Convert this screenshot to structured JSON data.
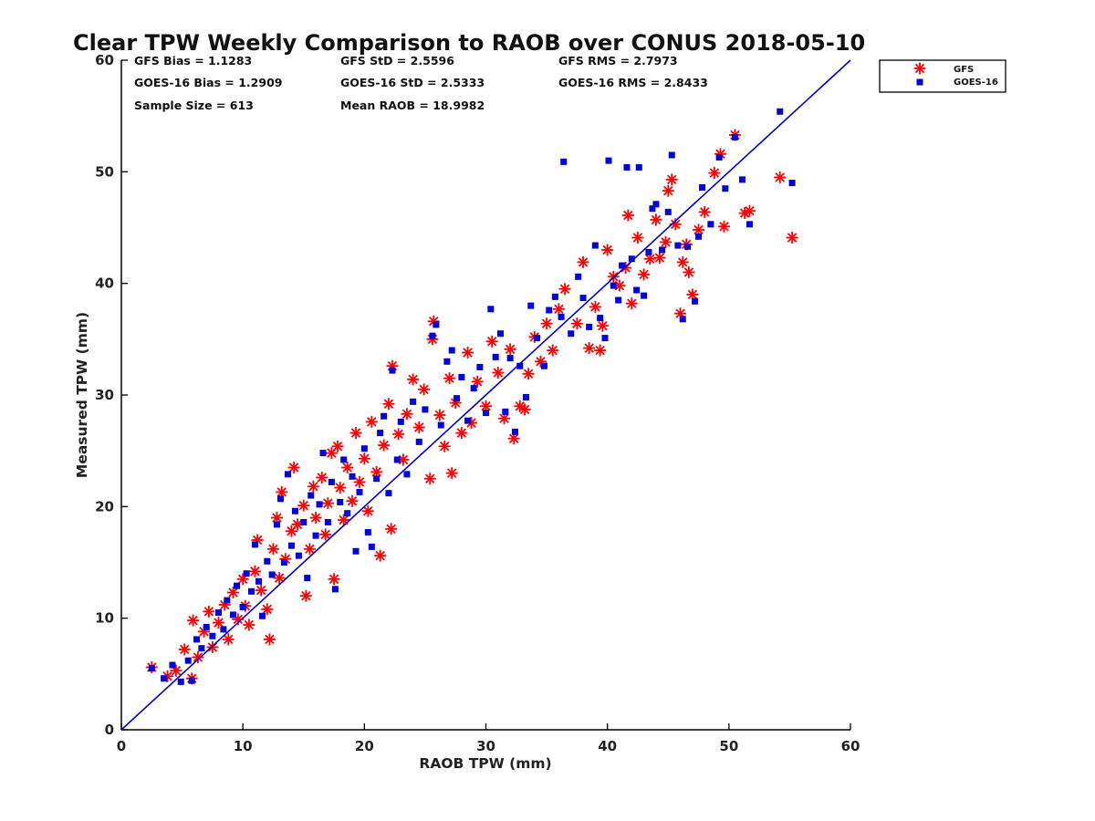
{
  "chart_data": {
    "type": "scatter",
    "title": "Clear TPW Weekly Comparison to RAOB over CONUS 2018-05-10",
    "xlabel": "RAOB TPW (mm)",
    "ylabel": "Measured TPW (mm)",
    "xlim": [
      0,
      60
    ],
    "ylim": [
      0,
      60
    ],
    "xticks": [
      "0",
      "10",
      "20",
      "30",
      "40",
      "50",
      "60"
    ],
    "yticks": [
      "0",
      "10",
      "20",
      "30",
      "40",
      "50",
      "60"
    ],
    "grid": false,
    "legend_position": "top-right, outside plot",
    "reference_line": {
      "name": "1:1 line",
      "from": [
        0,
        0
      ],
      "to": [
        60,
        60
      ],
      "color": "#0000cc"
    },
    "stats": {
      "gfs_bias": "GFS Bias = 1.1283",
      "goes_bias": "GOES-16 Bias = 1.2909",
      "sample_size": "Sample Size = 613",
      "gfs_std": "GFS StD = 2.5596",
      "goes_std": "GOES-16 StD = 2.5333",
      "mean_raob": "Mean RAOB = 18.9982",
      "gfs_rms": "GFS RMS = 2.7973",
      "goes_rms": "GOES-16 RMS = 2.8433"
    },
    "series": [
      {
        "name": "GFS",
        "marker": "asterisk",
        "color": "#ff0000",
        "points": [
          [
            2.5,
            5.6
          ],
          [
            3.8,
            4.8
          ],
          [
            4.5,
            5.3
          ],
          [
            5.2,
            7.2
          ],
          [
            5.8,
            4.6
          ],
          [
            5.9,
            9.8
          ],
          [
            6.3,
            6.5
          ],
          [
            6.8,
            8.8
          ],
          [
            7.2,
            10.6
          ],
          [
            7.5,
            7.4
          ],
          [
            8.0,
            9.6
          ],
          [
            8.5,
            11.2
          ],
          [
            8.8,
            8.1
          ],
          [
            9.2,
            12.3
          ],
          [
            9.6,
            9.9
          ],
          [
            10.0,
            13.5
          ],
          [
            10.2,
            11.1
          ],
          [
            10.5,
            9.4
          ],
          [
            11.0,
            14.2
          ],
          [
            11.2,
            17.0
          ],
          [
            11.5,
            12.5
          ],
          [
            12.0,
            10.8
          ],
          [
            12.2,
            8.1
          ],
          [
            12.5,
            16.2
          ],
          [
            12.8,
            19.0
          ],
          [
            13.0,
            13.6
          ],
          [
            13.2,
            21.3
          ],
          [
            13.5,
            15.3
          ],
          [
            14.0,
            17.8
          ],
          [
            14.2,
            23.5
          ],
          [
            14.5,
            18.4
          ],
          [
            15.0,
            20.1
          ],
          [
            15.2,
            12.0
          ],
          [
            15.5,
            16.2
          ],
          [
            15.8,
            21.8
          ],
          [
            16.0,
            19.0
          ],
          [
            16.5,
            22.6
          ],
          [
            16.8,
            17.5
          ],
          [
            17.0,
            20.3
          ],
          [
            17.3,
            24.8
          ],
          [
            17.5,
            13.5
          ],
          [
            17.8,
            25.4
          ],
          [
            18.0,
            21.7
          ],
          [
            18.3,
            18.8
          ],
          [
            18.6,
            23.5
          ],
          [
            19.0,
            20.5
          ],
          [
            19.3,
            26.6
          ],
          [
            19.6,
            22.2
          ],
          [
            20.0,
            24.3
          ],
          [
            20.3,
            19.6
          ],
          [
            20.6,
            27.6
          ],
          [
            21.0,
            23.1
          ],
          [
            21.3,
            15.6
          ],
          [
            21.6,
            25.5
          ],
          [
            22.0,
            29.2
          ],
          [
            22.2,
            18.0
          ],
          [
            22.3,
            32.6
          ],
          [
            22.8,
            26.5
          ],
          [
            23.2,
            24.2
          ],
          [
            23.5,
            28.3
          ],
          [
            24.0,
            31.4
          ],
          [
            24.5,
            27.1
          ],
          [
            24.9,
            30.5
          ],
          [
            25.4,
            22.5
          ],
          [
            25.6,
            35.0
          ],
          [
            25.7,
            36.6
          ],
          [
            26.2,
            28.2
          ],
          [
            26.6,
            25.4
          ],
          [
            27.0,
            31.5
          ],
          [
            27.2,
            23.0
          ],
          [
            27.5,
            29.3
          ],
          [
            28.0,
            26.6
          ],
          [
            28.5,
            33.8
          ],
          [
            28.8,
            27.5
          ],
          [
            29.3,
            31.2
          ],
          [
            30.0,
            29.0
          ],
          [
            30.5,
            34.8
          ],
          [
            31.0,
            32.0
          ],
          [
            31.5,
            27.9
          ],
          [
            32.0,
            34.1
          ],
          [
            32.3,
            26.1
          ],
          [
            32.8,
            29.0
          ],
          [
            33.2,
            28.7
          ],
          [
            33.5,
            31.9
          ],
          [
            34.0,
            35.2
          ],
          [
            34.5,
            33.0
          ],
          [
            35.0,
            36.4
          ],
          [
            35.5,
            34.0
          ],
          [
            36.0,
            37.7
          ],
          [
            36.5,
            39.5
          ],
          [
            37.5,
            36.4
          ],
          [
            38.0,
            41.9
          ],
          [
            38.5,
            34.2
          ],
          [
            39.0,
            37.9
          ],
          [
            39.4,
            34.0
          ],
          [
            39.6,
            36.2
          ],
          [
            40.0,
            43.0
          ],
          [
            40.5,
            40.6
          ],
          [
            41.0,
            39.8
          ],
          [
            41.5,
            41.4
          ],
          [
            41.7,
            46.1
          ],
          [
            42.0,
            38.2
          ],
          [
            42.5,
            44.1
          ],
          [
            43.0,
            40.8
          ],
          [
            43.5,
            42.2
          ],
          [
            44.0,
            45.7
          ],
          [
            44.3,
            42.3
          ],
          [
            44.8,
            43.7
          ],
          [
            45.0,
            48.3
          ],
          [
            45.3,
            49.3
          ],
          [
            45.6,
            45.3
          ],
          [
            46.0,
            37.3
          ],
          [
            46.2,
            41.9
          ],
          [
            46.5,
            43.5
          ],
          [
            46.7,
            41.0
          ],
          [
            47.0,
            39.0
          ],
          [
            47.5,
            44.8
          ],
          [
            48.0,
            46.4
          ],
          [
            48.8,
            49.9
          ],
          [
            49.3,
            51.6
          ],
          [
            49.6,
            45.1
          ],
          [
            50.5,
            53.3
          ],
          [
            51.3,
            46.3
          ],
          [
            51.7,
            46.5
          ],
          [
            54.2,
            49.5
          ],
          [
            55.2,
            44.1
          ]
        ]
      },
      {
        "name": "GOES-16",
        "marker": "square",
        "color": "#0000dd",
        "points": [
          [
            2.5,
            5.5
          ],
          [
            3.5,
            4.6
          ],
          [
            4.2,
            5.8
          ],
          [
            4.9,
            4.3
          ],
          [
            5.5,
            6.2
          ],
          [
            5.8,
            4.4
          ],
          [
            6.2,
            8.1
          ],
          [
            6.6,
            7.3
          ],
          [
            7.0,
            9.2
          ],
          [
            7.5,
            8.4
          ],
          [
            8.0,
            10.5
          ],
          [
            8.4,
            9.0
          ],
          [
            8.7,
            11.6
          ],
          [
            9.2,
            10.3
          ],
          [
            9.5,
            12.9
          ],
          [
            10.0,
            11.0
          ],
          [
            10.3,
            14.0
          ],
          [
            10.7,
            12.4
          ],
          [
            11.0,
            16.6
          ],
          [
            11.3,
            13.3
          ],
          [
            11.6,
            10.2
          ],
          [
            12.0,
            15.1
          ],
          [
            12.4,
            13.9
          ],
          [
            12.8,
            18.4
          ],
          [
            13.1,
            20.7
          ],
          [
            13.4,
            15.0
          ],
          [
            13.7,
            22.9
          ],
          [
            14.0,
            16.5
          ],
          [
            14.3,
            19.6
          ],
          [
            14.6,
            15.6
          ],
          [
            15.0,
            18.6
          ],
          [
            15.3,
            13.6
          ],
          [
            15.6,
            21.0
          ],
          [
            16.0,
            17.4
          ],
          [
            16.3,
            20.2
          ],
          [
            16.6,
            24.8
          ],
          [
            17.0,
            18.6
          ],
          [
            17.3,
            22.2
          ],
          [
            17.6,
            12.6
          ],
          [
            18.0,
            20.4
          ],
          [
            18.3,
            24.2
          ],
          [
            18.6,
            19.4
          ],
          [
            19.0,
            22.7
          ],
          [
            19.3,
            16.0
          ],
          [
            19.6,
            21.3
          ],
          [
            20.0,
            25.2
          ],
          [
            20.3,
            17.7
          ],
          [
            20.6,
            16.4
          ],
          [
            21.0,
            22.5
          ],
          [
            21.3,
            26.6
          ],
          [
            21.6,
            28.1
          ],
          [
            22.0,
            21.2
          ],
          [
            22.3,
            32.2
          ],
          [
            22.7,
            24.2
          ],
          [
            23.0,
            27.6
          ],
          [
            23.5,
            22.9
          ],
          [
            24.0,
            29.4
          ],
          [
            24.5,
            25.8
          ],
          [
            25.0,
            28.7
          ],
          [
            25.6,
            35.3
          ],
          [
            25.9,
            36.3
          ],
          [
            26.3,
            27.3
          ],
          [
            26.8,
            33.0
          ],
          [
            27.2,
            34.0
          ],
          [
            27.6,
            29.7
          ],
          [
            28.0,
            31.6
          ],
          [
            28.5,
            27.7
          ],
          [
            29.0,
            30.6
          ],
          [
            29.5,
            32.5
          ],
          [
            30.0,
            28.4
          ],
          [
            30.4,
            37.7
          ],
          [
            30.8,
            33.4
          ],
          [
            31.2,
            35.5
          ],
          [
            31.6,
            28.5
          ],
          [
            32.0,
            33.3
          ],
          [
            32.4,
            26.7
          ],
          [
            32.8,
            32.6
          ],
          [
            33.3,
            29.8
          ],
          [
            33.7,
            38.0
          ],
          [
            34.2,
            35.1
          ],
          [
            34.8,
            32.6
          ],
          [
            35.2,
            37.6
          ],
          [
            35.7,
            38.8
          ],
          [
            36.2,
            37.0
          ],
          [
            36.4,
            50.9
          ],
          [
            37.0,
            35.5
          ],
          [
            37.6,
            40.6
          ],
          [
            38.0,
            38.7
          ],
          [
            38.5,
            36.1
          ],
          [
            39.0,
            43.4
          ],
          [
            39.4,
            36.9
          ],
          [
            39.8,
            35.1
          ],
          [
            40.1,
            51.0
          ],
          [
            40.5,
            39.8
          ],
          [
            40.9,
            38.5
          ],
          [
            41.2,
            41.6
          ],
          [
            41.6,
            50.4
          ],
          [
            42.0,
            42.2
          ],
          [
            42.4,
            39.4
          ],
          [
            42.6,
            50.4
          ],
          [
            43.0,
            38.9
          ],
          [
            43.4,
            42.8
          ],
          [
            43.7,
            46.7
          ],
          [
            44.0,
            47.1
          ],
          [
            44.5,
            43.0
          ],
          [
            45.0,
            46.4
          ],
          [
            45.3,
            51.5
          ],
          [
            45.8,
            43.4
          ],
          [
            46.2,
            36.8
          ],
          [
            46.6,
            43.3
          ],
          [
            47.2,
            38.4
          ],
          [
            47.5,
            44.2
          ],
          [
            47.8,
            48.6
          ],
          [
            48.5,
            45.3
          ],
          [
            49.2,
            51.3
          ],
          [
            49.7,
            48.5
          ],
          [
            50.5,
            53.1
          ],
          [
            51.1,
            49.3
          ],
          [
            51.7,
            45.3
          ],
          [
            54.2,
            55.4
          ],
          [
            55.2,
            49.0
          ]
        ]
      }
    ]
  }
}
